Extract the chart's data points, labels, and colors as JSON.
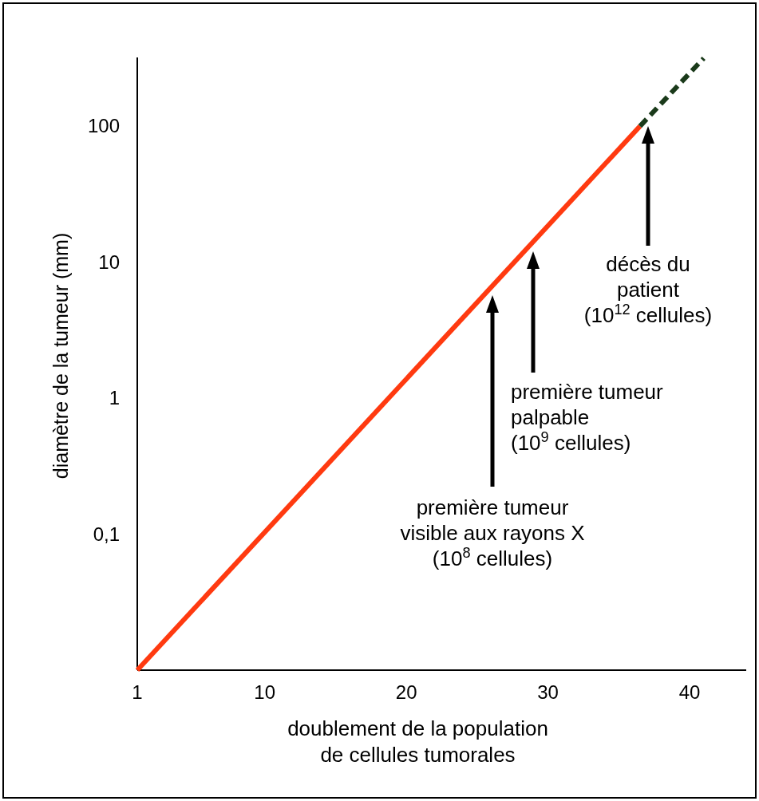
{
  "chart_data": {
    "type": "line",
    "xlabel": "doublement de la population\nde cellules tumorales",
    "ylabel": "diamètre de la tumeur (mm)",
    "xlim": [
      1,
      44
    ],
    "xticks": [
      1,
      10,
      20,
      30,
      40
    ],
    "ylim": [
      0.01,
      320
    ],
    "yticks": [
      {
        "value": 0.1,
        "label": "0,1"
      },
      1,
      10,
      100
    ],
    "log": true,
    "grid": false,
    "series": [
      {
        "color": "#ff3a10",
        "x": [
          1,
          36.5
        ],
        "values": [
          0.01,
          100
        ],
        "line_style": "solid"
      },
      {
        "color": "#1a3a1a",
        "x": [
          36.5,
          41
        ],
        "values": [
          100,
          316
        ],
        "line_style": "dashed"
      }
    ],
    "annotations": [
      "première tumeur\nvisible aux rayons X\n(10$^{8}$ cellules)",
      "première tumeur\npalpable\n(10$^{9}$ cellules)",
      "décès du\npatient\n(10$^{12}$ cellules)"
    ]
  }
}
